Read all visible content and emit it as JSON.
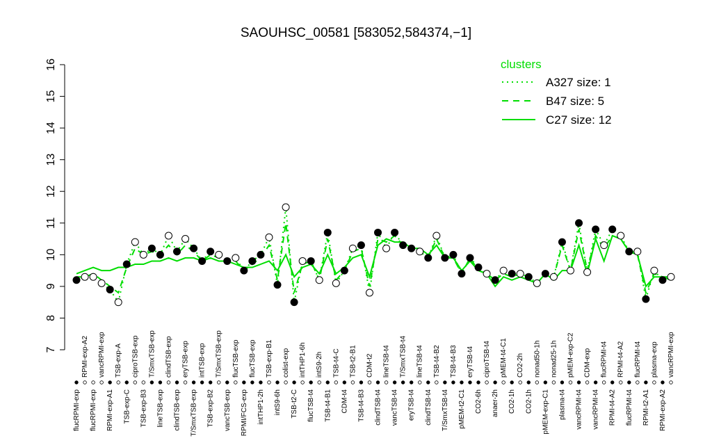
{
  "chart_data": {
    "type": "line",
    "title": "SAOUHSC_00581 [583052,584374,−1]",
    "legend_title": "clusters",
    "legend_position": "top-right",
    "ylim": [
      7,
      16
    ],
    "yticks": [
      7,
      8,
      9,
      10,
      11,
      12,
      13,
      14,
      15,
      16
    ],
    "categories": [
      "flucRPMI-exp",
      "RPMI-exp-A2",
      "flucRPMI-exp",
      "vancRPMI-exp",
      "RPMI-exp-A1",
      "TSB-exp-A",
      "TSB-exp-C",
      "ciproTSB-exp",
      "TSB-exp-B3",
      "T/SmxTSB-exp",
      "lineTSB-exp",
      "clindTSB-exp",
      "clindTSB-exp",
      "eryTSB-exp",
      "T/SmxTSB-exp",
      "intTSB-exp",
      "TSB-exp-B2",
      "T/SmxTSB-exp",
      "vancTSB-exp",
      "flucTSB-exp",
      "RPMI/FCS-exp",
      "flucTSB-exp",
      "intTHP1-2h",
      "TSB-exp-B1",
      "intS9-6h",
      "colist-exp",
      "TSB-t2-C",
      "intTHP1-6h",
      "flucTSB-t4",
      "intS9-2h",
      "TSB-t4-B1",
      "TSB-t4-C",
      "CDM-t4",
      "TSB-t2-B1",
      "TSB-t4-B3",
      "CDM-t2",
      "clindTSB-t4",
      "lineTSB-t4",
      "vancTSB-t4",
      "T/SmxTSB-t4",
      "eryTSB-t4",
      "lineTSB-t4",
      "clindTSB-t4",
      "TSB-t4-B2",
      "T/SmxTSB-t4",
      "TSB-t4-B3",
      "pMEM-t2-C1",
      "eryTSB-t4",
      "CO2-6h",
      "ciproTSB-t4",
      "anaer-2h",
      "pMEM-t4-C1",
      "CO2-1h",
      "CO2-2h",
      "CO2-1h",
      "nonad50-1h",
      "pMEM-exp-C1",
      "nonad25-1h",
      "plasma-t4",
      "pMEM-exp-C2",
      "vancRPMI-t4",
      "CDM-exp",
      "vancRPMI-t4",
      "flucRPMI-t4",
      "RPMI-t4-A2",
      "RPMI-t4-A2",
      "flucRPMI-t4",
      "flucRPMI-t4",
      "RPMI-t2-A1",
      "plasma-exp",
      "RPMI-exp-A2",
      "vancRPMI-exp"
    ],
    "series": [
      {
        "name": "A327 size: 1",
        "color": "#000000",
        "line_color": "#00dd00",
        "style": "dotted",
        "values": [
          9.2,
          9.3,
          9.3,
          9.1,
          8.9,
          8.5,
          9.7,
          10.4,
          10.0,
          10.2,
          10.0,
          10.6,
          10.1,
          10.5,
          10.2,
          9.8,
          10.1,
          10.0,
          9.8,
          9.9,
          9.5,
          9.8,
          10.0,
          10.55,
          9.05,
          11.5,
          8.5,
          9.8,
          9.8,
          9.2,
          10.7,
          9.1,
          9.5,
          10.2,
          10.3,
          8.8,
          10.7,
          10.2,
          10.7,
          10.3,
          10.2,
          10.1,
          9.9,
          10.6,
          9.9,
          10.0,
          9.4,
          9.9,
          9.6,
          9.4,
          9.2,
          9.5,
          9.4,
          9.4,
          9.3,
          9.1,
          9.4,
          9.3,
          10.4,
          9.5,
          11.0,
          9.45,
          10.8,
          10.3,
          10.8,
          10.6,
          10.1,
          10.1,
          8.6,
          9.5,
          9.2,
          9.3
        ],
        "filled": [
          true,
          false,
          false,
          false,
          true,
          false,
          true,
          false,
          false,
          true,
          true,
          false,
          true,
          false,
          true,
          true,
          true,
          false,
          true,
          false,
          true,
          true,
          true,
          false,
          true,
          false,
          true,
          false,
          true,
          false,
          true,
          false,
          true,
          false,
          true,
          false,
          true,
          false,
          true,
          true,
          true,
          false,
          true,
          false,
          true,
          true,
          true,
          true,
          true,
          false,
          true,
          false,
          true,
          false,
          true,
          false,
          true,
          false,
          true,
          false,
          true,
          false,
          true,
          false,
          true,
          false,
          true,
          false,
          true,
          false,
          true,
          false
        ]
      },
      {
        "name": "B47 size: 5",
        "color": "#00dd00",
        "style": "dashed",
        "values": [
          9.3,
          9.3,
          9.4,
          9.2,
          9.0,
          8.8,
          9.6,
          10.2,
          10.0,
          10.1,
          10.0,
          10.3,
          10.0,
          10.3,
          10.1,
          9.8,
          10.0,
          9.9,
          9.8,
          9.8,
          9.5,
          9.7,
          9.9,
          10.3,
          9.2,
          11.0,
          8.8,
          9.7,
          9.8,
          9.2,
          10.5,
          9.2,
          9.5,
          10.1,
          10.2,
          9.0,
          10.5,
          10.4,
          10.6,
          10.3,
          10.2,
          10.1,
          9.9,
          10.5,
          9.9,
          9.9,
          9.4,
          9.9,
          9.5,
          9.4,
          9.2,
          9.4,
          9.3,
          9.4,
          9.3,
          9.1,
          9.4,
          9.3,
          10.3,
          9.5,
          10.8,
          9.5,
          10.6,
          10.2,
          10.6,
          10.5,
          10.1,
          10.0,
          8.8,
          9.4,
          9.3,
          9.3
        ]
      },
      {
        "name": "C27 size: 12",
        "color": "#00dd00",
        "style": "solid",
        "values": [
          9.4,
          9.5,
          9.6,
          9.5,
          9.5,
          9.6,
          9.6,
          9.7,
          9.7,
          9.8,
          9.8,
          9.9,
          9.8,
          9.9,
          9.9,
          9.8,
          9.9,
          9.8,
          9.8,
          9.7,
          9.6,
          9.6,
          9.7,
          9.8,
          9.5,
          10.0,
          9.3,
          9.6,
          9.7,
          9.4,
          10.0,
          9.4,
          9.6,
          9.9,
          10.0,
          9.3,
          10.3,
          10.5,
          10.4,
          10.4,
          10.2,
          10.2,
          10.0,
          10.3,
          9.9,
          9.9,
          9.5,
          9.8,
          9.5,
          9.4,
          9.0,
          9.3,
          9.2,
          9.3,
          9.2,
          9.1,
          9.4,
          9.2,
          9.5,
          9.5,
          10.3,
          9.4,
          10.5,
          9.8,
          10.6,
          10.5,
          10.1,
          10.0,
          9.0,
          9.3,
          9.3,
          9.2
        ]
      }
    ]
  }
}
